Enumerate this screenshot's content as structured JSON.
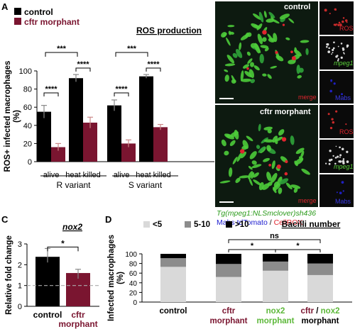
{
  "panels": {
    "A": {
      "letter": "A"
    },
    "B": {
      "letter": "B"
    },
    "C": {
      "letter": "C"
    },
    "D": {
      "letter": "D"
    }
  },
  "colors": {
    "control": "#000000",
    "morphant": "#7a1530",
    "lt_gray": "#d9d9d9",
    "mid_gray": "#8c8c8c",
    "dark": "#000000",
    "green": "#5ad23a",
    "blue": "#2020d0",
    "red": "#e0242e"
  },
  "microscopy": {
    "top": {
      "condition": "control",
      "merge": "merge"
    },
    "bottom": {
      "condition": "cftr morphant",
      "merge": "merge"
    },
    "thumbs": [
      "ROS",
      "mpeg1",
      "Mabs"
    ],
    "caption_line1": "Tg(mpeg1:NLSmclover)sh436",
    "caption_mabs": "Mabs tdTomato",
    "caption_sep": " / ",
    "caption_cellrox": "CellROX"
  },
  "chart_data": [
    {
      "panel": "A",
      "type": "bar",
      "title": "ROS production",
      "ylabel": "ROS+ infected macrophages (%)",
      "ylim": [
        0,
        100
      ],
      "yticks": [
        0,
        20,
        40,
        60,
        80,
        100
      ],
      "categories": [
        "alive",
        "heat killed",
        "alive",
        "heat killed"
      ],
      "groups": [
        "R variant",
        "S variant"
      ],
      "series": [
        {
          "name": "control",
          "values": [
            55,
            92,
            62,
            94
          ],
          "errors": [
            7,
            4,
            6,
            2
          ]
        },
        {
          "name": "cftr morphant",
          "values": [
            16,
            43,
            20,
            38
          ],
          "errors": [
            4,
            6,
            4,
            3
          ]
        }
      ],
      "significance": [
        {
          "label": "****",
          "cat": 0
        },
        {
          "label": "****",
          "cat": 1
        },
        {
          "label": "****",
          "cat": 2
        },
        {
          "label": "****",
          "cat": 3
        },
        {
          "label": "***",
          "from": 0,
          "to": 1
        },
        {
          "label": "***",
          "from": 2,
          "to": 3
        }
      ]
    },
    {
      "panel": "C",
      "type": "bar",
      "title": "nox2",
      "ylabel": "Relative fold change",
      "ylim": [
        0,
        3
      ],
      "yticks": [
        0,
        1,
        2,
        3
      ],
      "categories": [
        "control",
        "cftr morphant"
      ],
      "values": [
        2.38,
        1.6
      ],
      "errors": [
        0.4,
        0.18
      ],
      "reference_line": 1,
      "significance": [
        {
          "label": "*",
          "from": 0,
          "to": 1
        }
      ]
    },
    {
      "panel": "D",
      "type": "bar",
      "stacked": true,
      "title": "Bacilli number",
      "ylabel": "Infected macrophages (%)",
      "ylim": [
        0,
        100
      ],
      "yticks": [
        0,
        20,
        40,
        60,
        80,
        100
      ],
      "categories": [
        "control",
        "cftr morphant",
        "nox2 morphant",
        "cftr / nox2 morphant"
      ],
      "series": [
        {
          "name": "<5",
          "values": [
            73,
            52,
            65,
            56
          ]
        },
        {
          "name": "5-10",
          "values": [
            18,
            27,
            19,
            24
          ]
        },
        {
          "name": ">10",
          "values": [
            9,
            21,
            16,
            20
          ]
        }
      ],
      "significance": [
        {
          "label": "*",
          "from": 1,
          "to": 2
        },
        {
          "label": "*",
          "from": 2,
          "to": 3
        },
        {
          "label": "ns",
          "from": 1,
          "to": 3
        }
      ]
    }
  ]
}
